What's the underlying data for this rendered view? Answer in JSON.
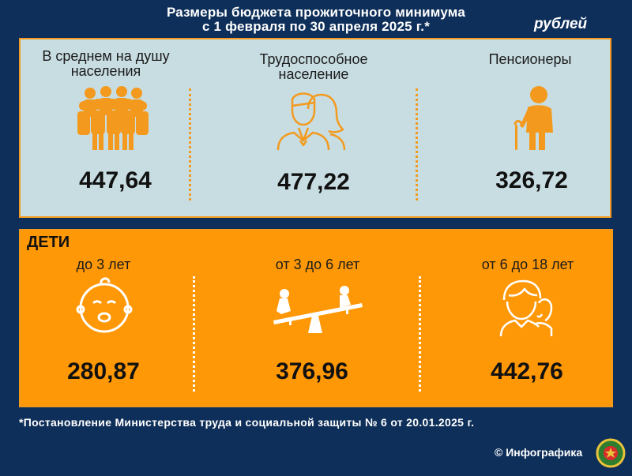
{
  "title": {
    "line1": "Размеры бюджета прожиточного минимума",
    "line2": "с 1 февраля по 30 апреля 2025 г.*"
  },
  "unit": "рублей",
  "adults": [
    {
      "label": "В среднем на душу населения",
      "value": "447,64",
      "icon": "group-people-icon"
    },
    {
      "label": "Трудоспособное население",
      "value": "477,22",
      "icon": "man-woman-icon"
    },
    {
      "label": "Пенсионеры",
      "value": "326,72",
      "icon": "elderly-cane-icon"
    }
  ],
  "children": {
    "title": "ДЕТИ",
    "groups": [
      {
        "label": "до 3 лет",
        "value": "280,87",
        "icon": "baby-face-icon"
      },
      {
        "label": "от 3 до 6 лет",
        "value": "376,96",
        "icon": "seesaw-icon"
      },
      {
        "label": "от 6 до 18 лет",
        "value": "442,76",
        "icon": "teenagers-icon"
      }
    ]
  },
  "footnote": "*Постановление Министерства труда и социальной защиты № 6 от 20.01.2025 г.",
  "credit": "© Инфографика",
  "colors": {
    "background": "#0e2f59",
    "panel_top": "#c8dde2",
    "panel_bottom": "#ff9806",
    "accent": "#f39a1e"
  }
}
